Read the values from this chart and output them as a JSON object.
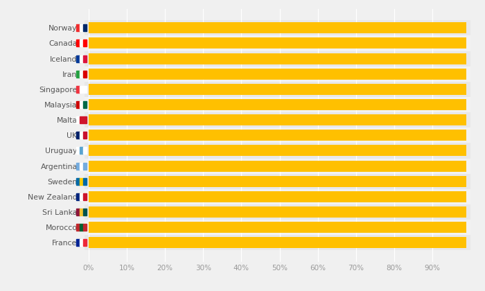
{
  "countries": [
    "Norway*",
    "Canada*",
    "Iceland*",
    "Iran*",
    "Singapore*",
    "Malaysia*",
    "Malta*",
    "UK*",
    "Uruguay*",
    "Argentina*",
    "Sweden*",
    "New Zealand*",
    "Sri Lanka*",
    "Morocco*",
    "France*"
  ],
  "values": [
    99,
    99,
    99,
    99,
    99,
    99,
    99,
    99,
    99,
    99,
    99,
    99,
    99,
    99,
    99
  ],
  "bar_color": "#FFC000",
  "row_colors": [
    "#E8E8E8",
    "#F2F2F2"
  ],
  "xlim_max": 95,
  "xtick_values": [
    0,
    10,
    20,
    30,
    40,
    50,
    60,
    70,
    80,
    90
  ],
  "xtick_labels": [
    "0%",
    "10%",
    "20%",
    "30%",
    "40%",
    "50%",
    "60%",
    "70%",
    "80%",
    "90%"
  ],
  "bar_height": 0.72,
  "label_fontsize": 7.8,
  "tick_fontsize": 7.5,
  "grid_color": "#FFFFFF",
  "tick_color": "#999999",
  "label_color": "#555555",
  "flag_colors": {
    "Norway*": [
      "#EF2B2D",
      "#FFFFFF",
      "#002868"
    ],
    "Canada*": [
      "#FF0000",
      "#FFFFFF",
      "#FF0000"
    ],
    "Iceland*": [
      "#003897",
      "#FFFFFF",
      "#DC143C"
    ],
    "Iran*": [
      "#239F40",
      "#FFFFFF",
      "#DA0000"
    ],
    "Singapore*": [
      "#EF3340",
      "#FFFFFF",
      "#FFFFFF"
    ],
    "Malaysia*": [
      "#CC0001",
      "#FFFFFF",
      "#006847"
    ],
    "Malta*": [
      "#FFFFFF",
      "#CF142B",
      "#CF142B"
    ],
    "UK*": [
      "#012169",
      "#FFFFFF",
      "#C8102E"
    ],
    "Uruguay*": [
      "#FFFFFF",
      "#5BA4CF",
      "#FFFFFF"
    ],
    "Argentina*": [
      "#74ACDF",
      "#FFFFFF",
      "#74ACDF"
    ],
    "Sweden*": [
      "#006AA7",
      "#FECC02",
      "#006AA7"
    ],
    "New Zealand*": [
      "#00247D",
      "#FFFFFF",
      "#CC142B"
    ],
    "Sri Lanka*": [
      "#8D153A",
      "#F4C430",
      "#00534E"
    ],
    "Morocco*": [
      "#C1272D",
      "#006233",
      "#C1272D"
    ],
    "France*": [
      "#002395",
      "#FFFFFF",
      "#ED2939"
    ]
  }
}
